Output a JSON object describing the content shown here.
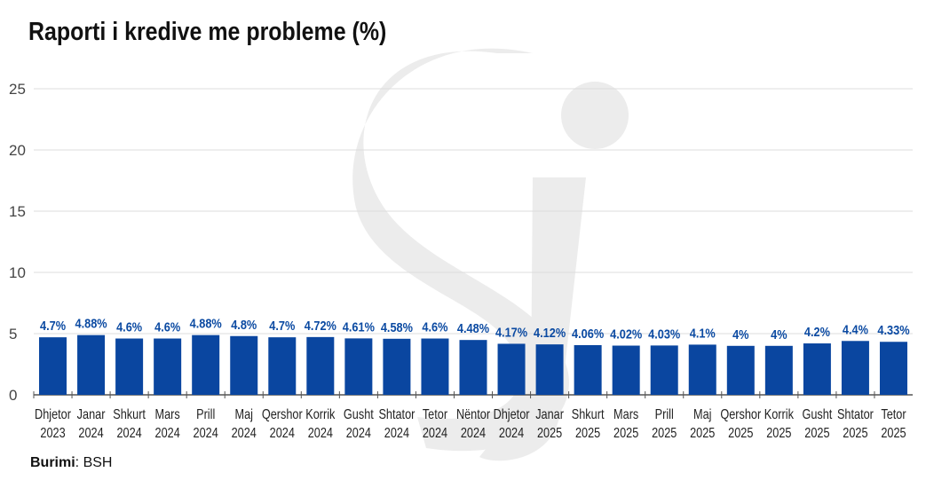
{
  "title": "Raporti i kredive me probleme (%)",
  "source": {
    "label": "Burimi",
    "value": "BSH"
  },
  "colors": {
    "bar": "#0a46a0",
    "label": "#0b4aa2",
    "grid": "#dcdcdc",
    "watermark": "#ececec"
  },
  "chart_data": {
    "type": "bar",
    "title": "Raporti i kredive me probleme (%)",
    "xlabel": "",
    "ylabel": "",
    "ylim": [
      0,
      25
    ],
    "yticks": [
      0,
      5,
      10,
      15,
      20,
      25
    ],
    "grid": true,
    "categories": [
      [
        "Dhjetor",
        "2023"
      ],
      [
        "Janar",
        "2024"
      ],
      [
        "Shkurt",
        "2024"
      ],
      [
        "Mars",
        "2024"
      ],
      [
        "Prill",
        "2024"
      ],
      [
        "Maj",
        "2024"
      ],
      [
        "Qershor",
        "2024"
      ],
      [
        "Korrik",
        "2024"
      ],
      [
        "Gusht",
        "2024"
      ],
      [
        "Shtator",
        "2024"
      ],
      [
        "Tetor",
        "2024"
      ],
      [
        "Nëntor",
        "2024"
      ],
      [
        "Dhjetor",
        "2024"
      ],
      [
        "Janar",
        "2025"
      ],
      [
        "Shkurt",
        "2025"
      ],
      [
        "Mars",
        "2025"
      ],
      [
        "Prill",
        "2025"
      ],
      [
        "Maj",
        "2025"
      ],
      [
        "Qershor",
        "2025"
      ],
      [
        "Korrik",
        "2025"
      ],
      [
        "Gusht",
        "2025"
      ],
      [
        "Shtator",
        "2025"
      ],
      [
        "Tetor",
        "2025"
      ]
    ],
    "values": [
      4.7,
      4.88,
      4.6,
      4.6,
      4.88,
      4.8,
      4.7,
      4.72,
      4.61,
      4.58,
      4.6,
      4.48,
      4.17,
      4.12,
      4.06,
      4.02,
      4.03,
      4.1,
      4,
      4,
      4.2,
      4.4,
      4.33
    ],
    "labels": [
      "4.7%",
      "4.88%",
      "4.6%",
      "4.6%",
      "4.88%",
      "4.8%",
      "4.7%",
      "4.72%",
      "4.61%",
      "4.58%",
      "4.6%",
      "4.48%",
      "4.17%",
      "4.12%",
      "4.06%",
      "4.02%",
      "4.03%",
      "4.1%",
      "4%",
      "4%",
      "4.2%",
      "4.4%",
      "4.33%"
    ]
  }
}
